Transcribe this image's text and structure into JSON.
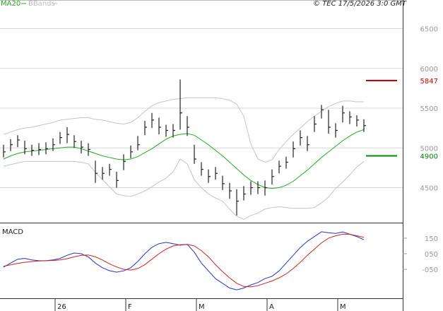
{
  "chart_data": [
    {
      "type": "ohlc",
      "categories": [
        null,
        null,
        null,
        null,
        null,
        null,
        null,
        "26",
        null,
        null,
        null,
        null,
        null,
        null,
        null,
        null,
        null,
        "F",
        null,
        null,
        null,
        null,
        null,
        null,
        null,
        null,
        null,
        "M",
        null,
        null,
        null,
        null,
        null,
        null,
        null,
        null,
        null,
        "A",
        null,
        null,
        null,
        null,
        null,
        null,
        null,
        null,
        null,
        "M",
        null,
        null,
        null,
        null
      ],
      "high": [
        5040,
        5110,
        5160,
        5090,
        5040,
        5060,
        5070,
        5120,
        5200,
        5260,
        5160,
        5090,
        5060,
        4840,
        4760,
        4800,
        4700,
        4920,
        5030,
        5150,
        5340,
        5440,
        5380,
        5290,
        5300,
        5860,
        5400,
        5040,
        4820,
        4730,
        4760,
        4650,
        4560,
        4480,
        4520,
        4580,
        4580,
        4590,
        4730,
        4840,
        4890,
        5080,
        5220,
        5150,
        5400,
        5540,
        5480,
        5310,
        5530,
        5460,
        5410,
        5360
      ],
      "low": [
        4880,
        4960,
        5010,
        4920,
        4900,
        4910,
        4920,
        4960,
        5050,
        5060,
        5000,
        4930,
        4900,
        4560,
        4600,
        4650,
        4500,
        4720,
        4870,
        4970,
        5160,
        5250,
        5170,
        5140,
        5130,
        5230,
        5150,
        4800,
        4650,
        4560,
        4600,
        4470,
        4360,
        4150,
        4340,
        4410,
        4420,
        4400,
        4540,
        4680,
        4740,
        4880,
        5030,
        4960,
        5200,
        5370,
        5180,
        5130,
        5320,
        5300,
        5270,
        5200
      ],
      "close": [
        4950,
        5040,
        5100,
        4990,
        4970,
        4980,
        4990,
        5040,
        5130,
        5170,
        5080,
        5010,
        4980,
        4680,
        4680,
        4730,
        4590,
        4830,
        4950,
        5040,
        5260,
        5350,
        5260,
        5220,
        5220,
        5440,
        5260,
        4860,
        4730,
        4640,
        4680,
        4550,
        4460,
        4330,
        4420,
        4500,
        4500,
        4500,
        4640,
        4770,
        4820,
        4990,
        5130,
        5040,
        5300,
        5480,
        5260,
        5220,
        5440,
        5390,
        5350,
        5280
      ],
      "color": "#222222",
      "series": [
        {
          "name": "MA20",
          "color": "#22aa22",
          "values": [
            4860,
            4900,
            4930,
            4950,
            4960,
            4970,
            4980,
            4990,
            5000,
            5010,
            5010,
            4990,
            4960,
            4930,
            4900,
            4880,
            4860,
            4850,
            4860,
            4890,
            4940,
            4990,
            5050,
            5110,
            5150,
            5170,
            5180,
            5160,
            5100,
            5040,
            4970,
            4900,
            4820,
            4740,
            4660,
            4590,
            4540,
            4500,
            4490,
            4500,
            4530,
            4580,
            4650,
            4720,
            4800,
            4880,
            4950,
            5020,
            5090,
            5150,
            5200,
            5230
          ]
        },
        {
          "name": "BBands",
          "color": "#c4c4c4",
          "upper": [
            5170,
            5200,
            5230,
            5250,
            5260,
            5280,
            5300,
            5320,
            5350,
            5360,
            5370,
            5380,
            5380,
            5360,
            5350,
            5330,
            5310,
            5300,
            5320,
            5380,
            5460,
            5530,
            5570,
            5590,
            5610,
            5620,
            5630,
            5630,
            5630,
            5630,
            5630,
            5620,
            5600,
            5550,
            5400,
            5050,
            4860,
            4820,
            4850,
            4980,
            5080,
            5170,
            5250,
            5330,
            5400,
            5460,
            5520,
            5560,
            5590,
            5590,
            5580,
            5580
          ],
          "lower": [
            4770,
            4790,
            4810,
            4830,
            4830,
            4830,
            4830,
            4830,
            4830,
            4830,
            4830,
            4820,
            4800,
            4690,
            4600,
            4510,
            4420,
            4400,
            4390,
            4420,
            4460,
            4510,
            4570,
            4620,
            4700,
            4860,
            4800,
            4600,
            4500,
            4420,
            4370,
            4330,
            4230,
            4140,
            4100,
            4150,
            4180,
            4230,
            4250,
            4260,
            4250,
            4240,
            4240,
            4240,
            4250,
            4310,
            4380,
            4490,
            4570,
            4660,
            4760,
            4830
          ]
        }
      ],
      "levels": [
        {
          "value": 5847,
          "color": "#cc0000"
        },
        {
          "value": 4900,
          "color": "#008800"
        }
      ],
      "ylim": [
        4060,
        6860
      ],
      "yticks": [
        4500,
        5000,
        5500,
        6000,
        6500
      ],
      "grid": true,
      "credit": "© TEC 17/5/2026 3:0 GMT"
    },
    {
      "type": "line",
      "title": "MACD",
      "series": [
        {
          "color": "#2233cc",
          "values": [
            -36,
            -10,
            15,
            20,
            10,
            5,
            5,
            10,
            20,
            40,
            55,
            50,
            30,
            -10,
            -40,
            -59,
            -68,
            -60,
            -40,
            0,
            50,
            91,
            115,
            123,
            115,
            105,
            110,
            60,
            -10,
            -60,
            -110,
            -140,
            -170,
            -182,
            -170,
            -150,
            -135,
            -110,
            -95,
            -60,
            -10,
            40,
            90,
            130,
            160,
            191,
            185,
            180,
            190,
            175,
            160,
            140
          ]
        },
        {
          "color": "#cc2222",
          "values": [
            -30,
            -22,
            -12,
            -5,
            0,
            3,
            5,
            7,
            10,
            18,
            30,
            40,
            42,
            30,
            10,
            -15,
            -35,
            -50,
            -55,
            -45,
            -20,
            15,
            50,
            80,
            100,
            108,
            110,
            100,
            70,
            30,
            -20,
            -65,
            -105,
            -140,
            -160,
            -163,
            -155,
            -140,
            -125,
            -105,
            -80,
            -45,
            -5,
            40,
            80,
            120,
            150,
            165,
            175,
            175,
            165,
            155
          ]
        }
      ],
      "ylim": [
        -236,
        236
      ],
      "yticks": [
        {
          "value": -50,
          "label": "-050"
        },
        {
          "value": 50,
          "label": "050"
        },
        150
      ]
    }
  ]
}
